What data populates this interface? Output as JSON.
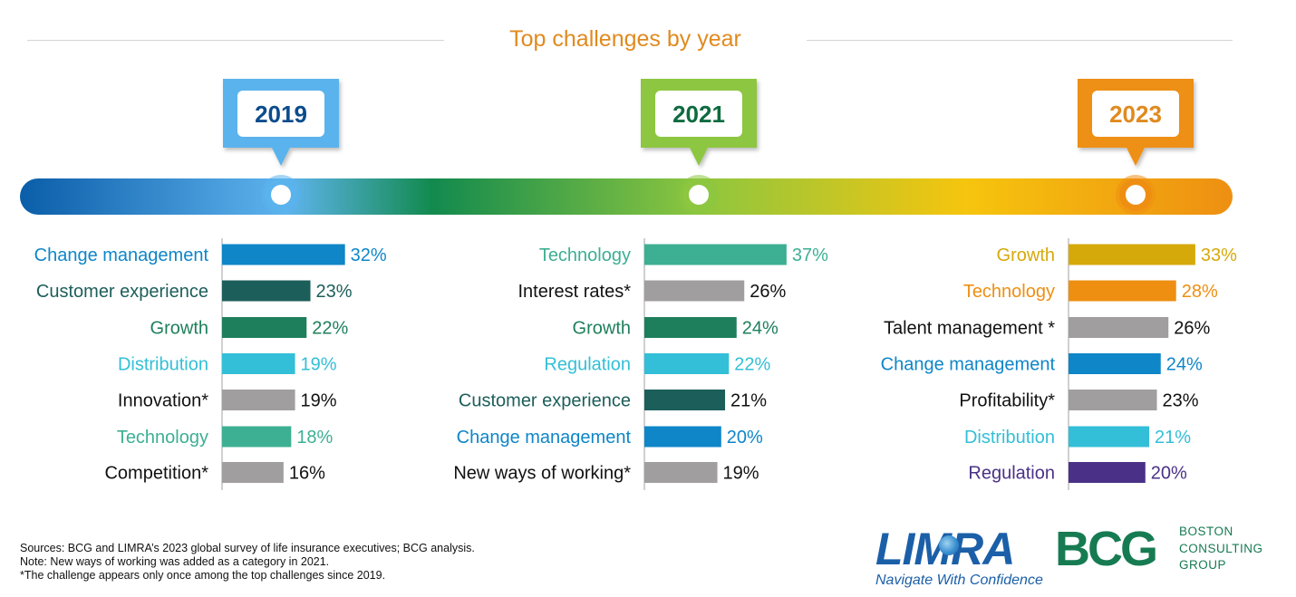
{
  "title": "Top challenges by year",
  "colors": {
    "blue": "#0E86C8",
    "dark_teal": "#1C5E5A",
    "green": "#1E7F5C",
    "cyan": "#33BFD7",
    "gray": "#A09E9E",
    "teal": "#3DAF93",
    "gold": "#D6A90A",
    "orange": "#EE8F12",
    "purple": "#4A3187",
    "timeline_stops": [
      "#0A5DA8",
      "#5FB4EE",
      "#128A4E",
      "#8DC63F",
      "#F6C50E",
      "#EE8F12"
    ],
    "year_2019": "#5AB3EC",
    "year_2021": "#8DC63F",
    "year_2023": "#EE8F12",
    "year_text_2019": "#0B4C8C",
    "year_text_2021": "#0E6B3F",
    "year_text_2023": "#E08A1E"
  },
  "chart_data": [
    {
      "type": "bar",
      "year": "2019",
      "categories": [
        "Change management",
        "Customer experience",
        "Growth",
        "Distribution",
        "Innovation",
        "Technology",
        "Competition"
      ],
      "asterisks": [
        "",
        "",
        "",
        "",
        "*",
        "",
        "*"
      ],
      "values": [
        32,
        23,
        22,
        19,
        19,
        18,
        16
      ],
      "value_labels": [
        "32%",
        "23%",
        "22%",
        "19%",
        "19%",
        "18%",
        "16%"
      ],
      "bar_colors": [
        "blue",
        "dark_teal",
        "green",
        "cyan",
        "gray",
        "teal",
        "gray"
      ],
      "label_colors": [
        "blue",
        "dark_teal",
        "green",
        "cyan",
        "black",
        "teal",
        "black"
      ],
      "value_colors": [
        "blue",
        "dark_teal",
        "green",
        "cyan",
        "black",
        "teal",
        "black"
      ]
    },
    {
      "type": "bar",
      "year": "2021",
      "categories": [
        "Technology",
        "Interest rates",
        "Growth",
        "Regulation",
        "Customer experience",
        "Change management",
        "New ways of working"
      ],
      "asterisks": [
        "",
        "*",
        "",
        "",
        "",
        "",
        "*"
      ],
      "values": [
        37,
        26,
        24,
        22,
        21,
        20,
        19
      ],
      "value_labels": [
        "37%",
        "26%",
        "24%",
        "22%",
        "21%",
        "20%",
        "19%"
      ],
      "bar_colors": [
        "teal",
        "gray",
        "green",
        "cyan",
        "dark_teal",
        "blue",
        "gray"
      ],
      "label_colors": [
        "teal",
        "black",
        "green",
        "cyan",
        "dark_teal",
        "blue",
        "black"
      ],
      "value_colors": [
        "teal",
        "black",
        "green",
        "cyan",
        "black",
        "blue",
        "black"
      ]
    },
    {
      "type": "bar",
      "year": "2023",
      "categories": [
        "Growth",
        "Technology",
        "Talent management ",
        "Change management",
        "Profitability",
        "Distribution",
        "Regulation"
      ],
      "asterisks": [
        "",
        "",
        "*",
        "",
        "*",
        "",
        ""
      ],
      "values": [
        33,
        28,
        26,
        24,
        23,
        21,
        20
      ],
      "value_labels": [
        "33%",
        "28%",
        "26%",
        "24%",
        "23%",
        "21%",
        "20%"
      ],
      "bar_colors": [
        "gold",
        "orange",
        "gray",
        "blue",
        "gray",
        "cyan",
        "purple"
      ],
      "label_colors": [
        "gold",
        "orange",
        "black",
        "blue",
        "black",
        "cyan",
        "purple"
      ],
      "value_colors": [
        "gold",
        "orange",
        "black",
        "blue",
        "black",
        "cyan",
        "purple"
      ]
    }
  ],
  "footnotes": {
    "sources": "Sources: BCG and LIMRA’s 2023 global survey of life insurance executives; BCG analysis.",
    "note": "Note: New ways of working was added as a category in 2021.",
    "asterisk": "*The challenge appears only once among the top challenges since 2019."
  },
  "logos": {
    "limra_word": "LIMRA",
    "limra_tagline": "Navigate With Confidence",
    "bcg_word": "BCG",
    "bcg_sub": [
      "BOSTON",
      "CONSULTING",
      "GROUP"
    ]
  }
}
